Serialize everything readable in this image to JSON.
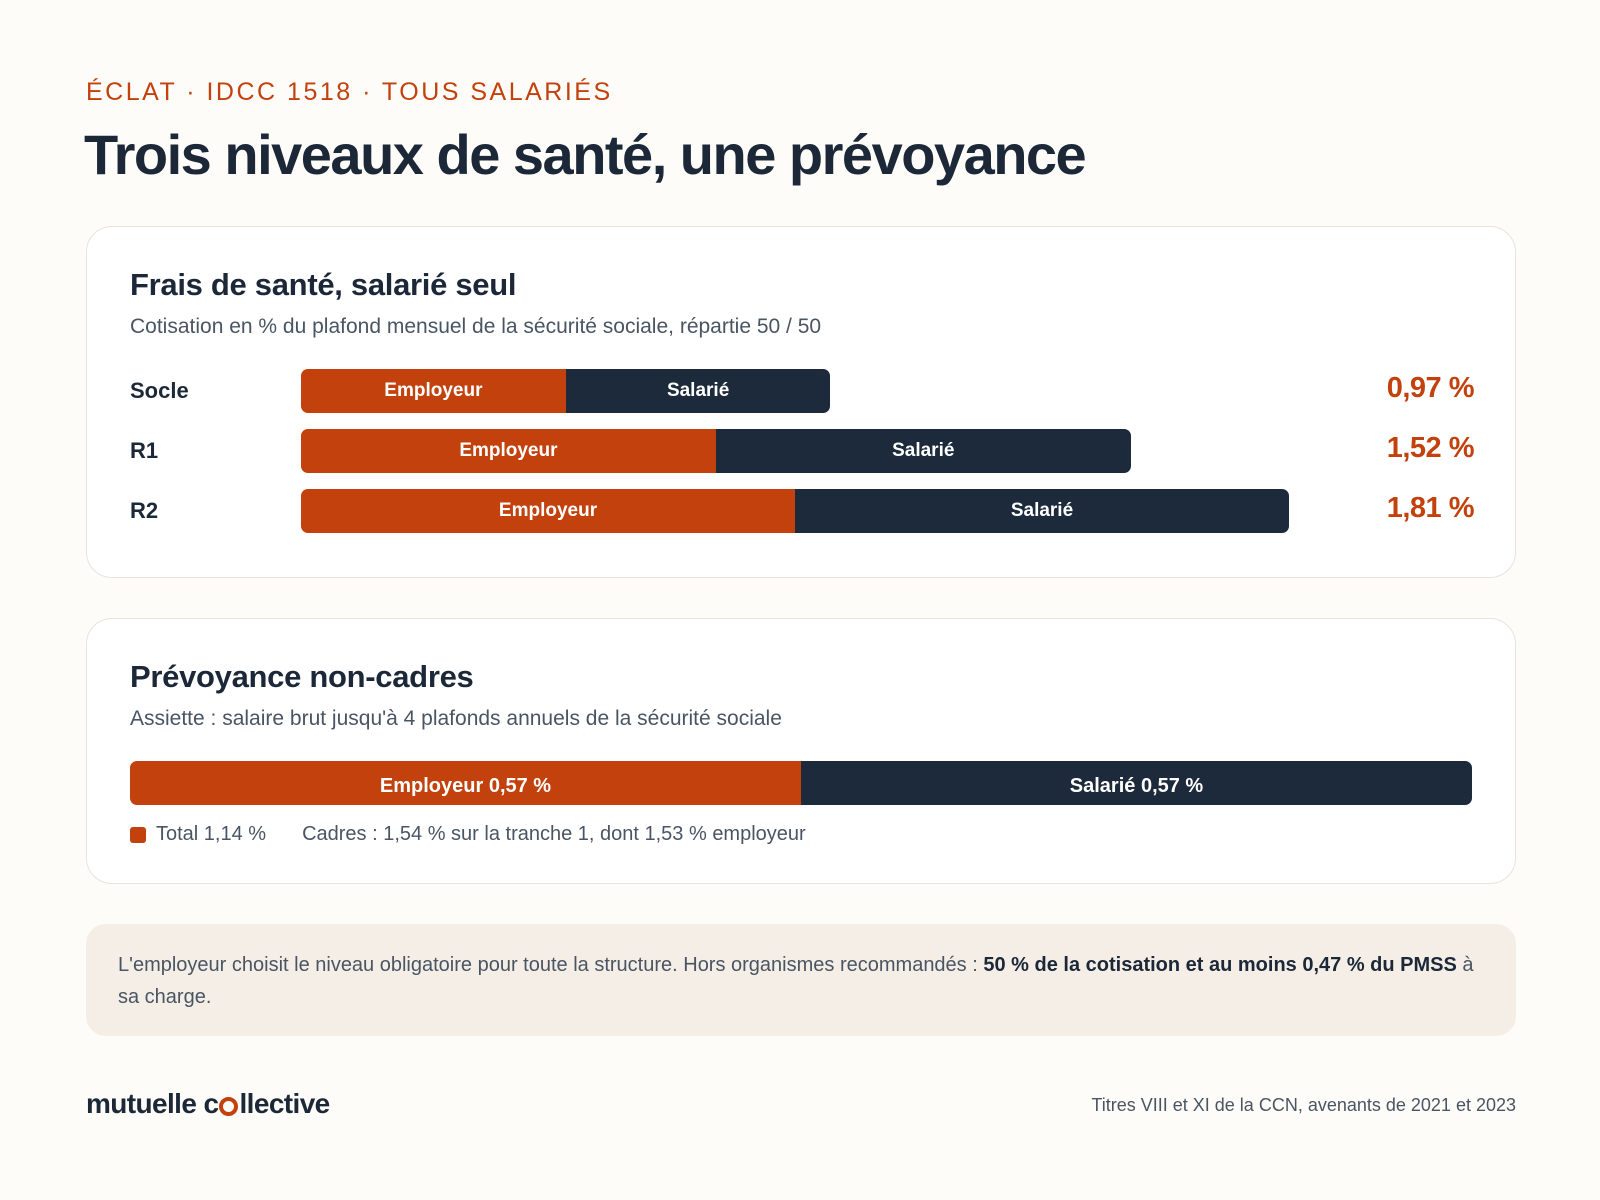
{
  "header": {
    "kicker": "ÉCLAT · IDCC 1518 · TOUS SALARIÉS",
    "title": "Trois niveaux de santé, une prévoyance"
  },
  "health": {
    "title": "Frais de santé, salarié seul",
    "subtitle": "Cotisation en % du plafond mensuel de la sécurité sociale, répartie 50 / 50"
  },
  "prevoyance": {
    "title": "Prévoyance non-cadres",
    "subtitle": "Assiette : salaire brut jusqu'à 4 plafonds annuels de la sécurité sociale",
    "employer_label": "Employeur 0,57 %",
    "employee_label": "Salarié 0,57 %",
    "legend_total": "Total 1,14 %",
    "cadres_note": "Cadres : 1,54 % sur la tranche 1, dont 1,53 % employeur"
  },
  "chart_data": [
    {
      "type": "bar",
      "orientation": "horizontal",
      "stacked": true,
      "categories": [
        "Socle",
        "R1",
        "R2"
      ],
      "series": [
        {
          "name": "Employeur",
          "values": [
            0.485,
            0.76,
            0.905
          ],
          "color": "#C2410C"
        },
        {
          "name": "Salarié",
          "values": [
            0.485,
            0.76,
            0.905
          ],
          "color": "#1C2A3B"
        }
      ],
      "totals": [
        0.97,
        1.52,
        1.81
      ],
      "total_labels": [
        "0,97 %",
        "1,52 %",
        "1,81 %"
      ],
      "xlim": [
        0,
        1.81
      ]
    },
    {
      "type": "bar",
      "orientation": "horizontal",
      "stacked": true,
      "categories": [
        "Prévoyance non-cadres"
      ],
      "series": [
        {
          "name": "Employeur",
          "values": [
            0.57
          ],
          "color": "#C2410C"
        },
        {
          "name": "Salarié",
          "values": [
            0.57
          ],
          "color": "#1C2A3B"
        }
      ],
      "totals": [
        1.14
      ]
    }
  ],
  "callout": {
    "text_before": "L'employeur choisit le niveau obligatoire pour toute la structure. Hors organismes recommandés : ",
    "text_bold": "50 % de la cotisation et au moins 0,47 % du PMSS",
    "text_after": " à sa charge."
  },
  "footer": {
    "brand_part1": "mutuelle c",
    "brand_part2": "llective",
    "source": "Titres VIII et XI de la CCN, avenants de 2021 et 2023"
  },
  "colors": {
    "accent": "#C2410C",
    "dark": "#1C2A3B",
    "background": "#FDFCF8",
    "callout_bg": "#F4EEE6"
  }
}
